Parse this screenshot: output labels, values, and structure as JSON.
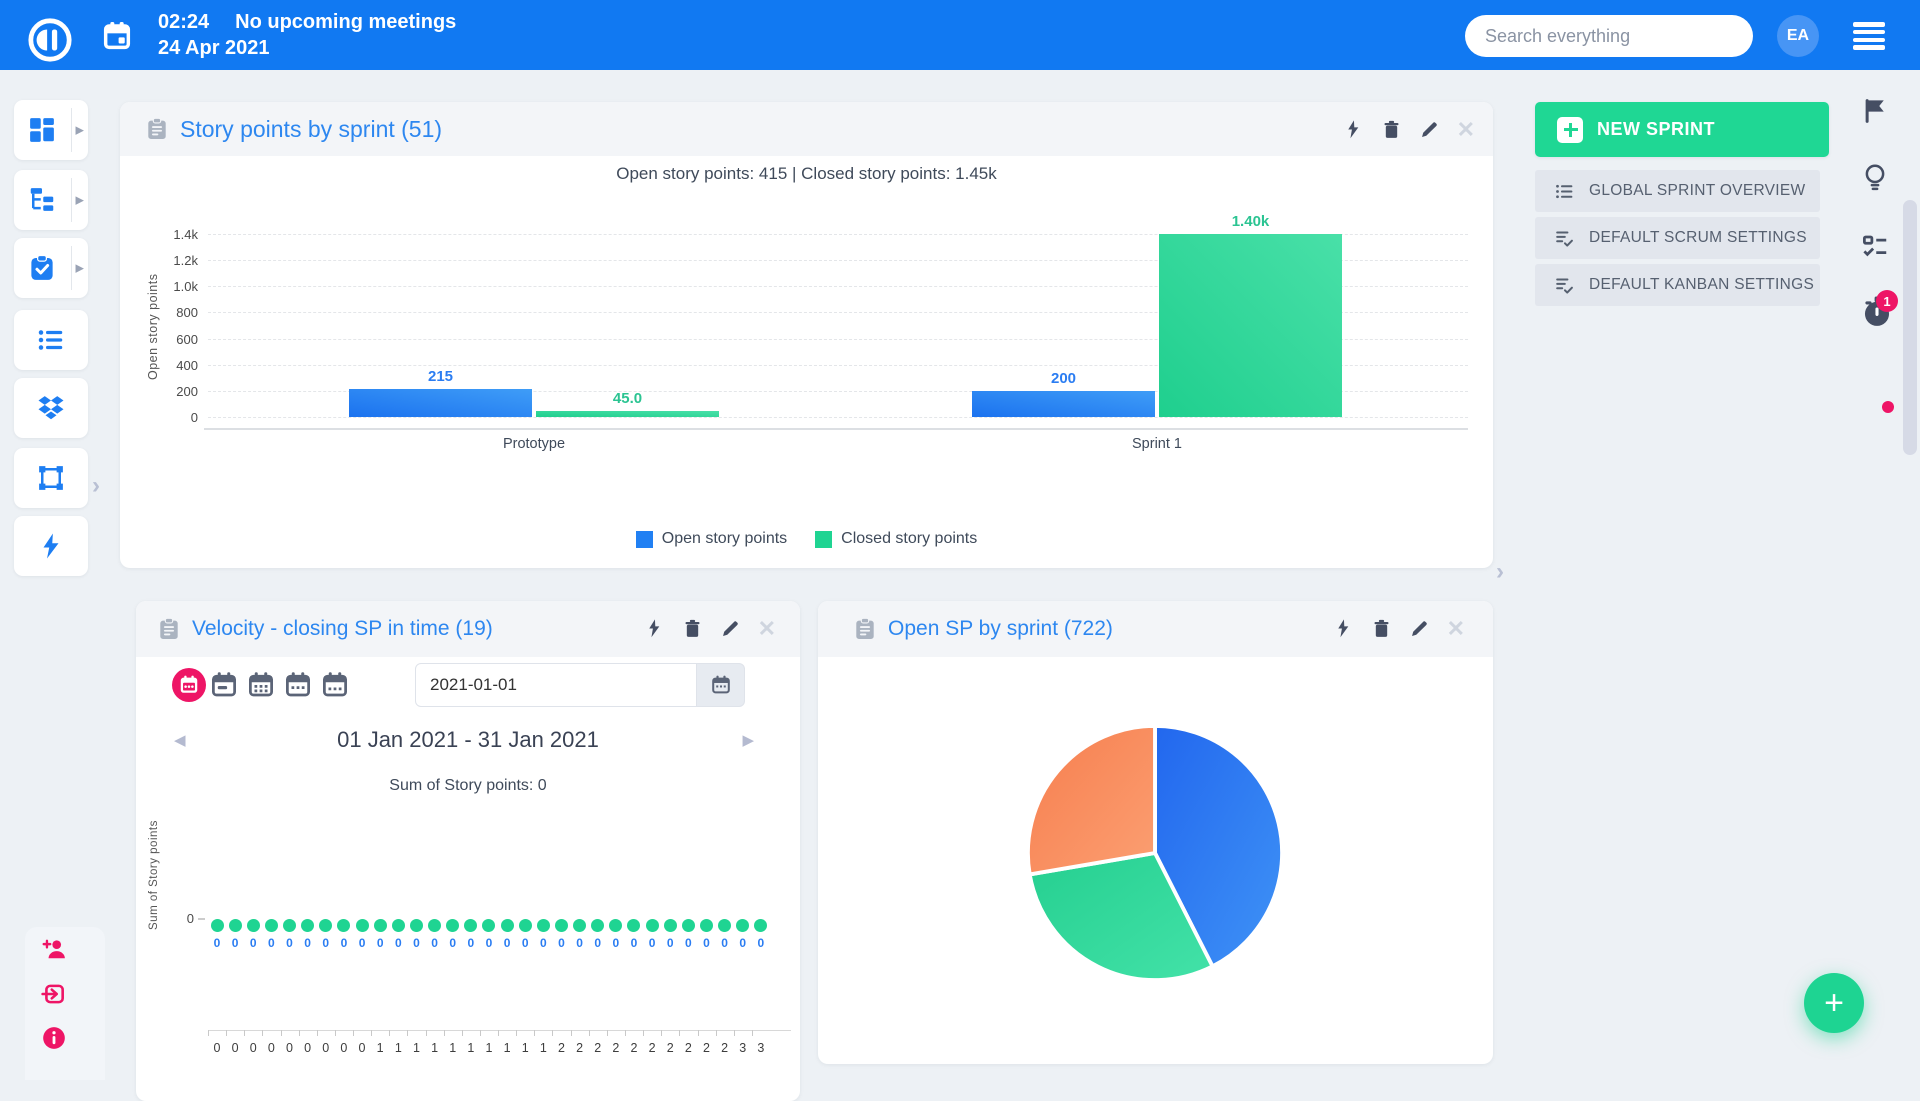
{
  "topbar": {
    "time": "02:24",
    "meetings_label": "No upcoming meetings",
    "date": "24 Apr 2021",
    "search_placeholder": "Search everything",
    "avatar_initials": "EA"
  },
  "widgets": {
    "story_points": {
      "title": "Story points by sprint (51)",
      "subtitle": "Open story points: 415 | Closed story points: 1.45k"
    },
    "velocity": {
      "title": "Velocity - closing SP in time (19)",
      "date_value": "2021-01-01",
      "date_range": "01 Jan 2021 - 31 Jan 2021",
      "sum_text": "Sum of Story points: 0"
    },
    "open_sp": {
      "title": "Open SP by sprint (722)"
    }
  },
  "right_panel": {
    "new_sprint_label": "NEW SPRINT",
    "buttons": [
      {
        "label": "GLOBAL SPRINT OVERVIEW"
      },
      {
        "label": "DEFAULT SCRUM SETTINGS"
      },
      {
        "label": "DEFAULT KANBAN SETTINGS"
      }
    ]
  },
  "right_rail": {
    "timer_badge": "1"
  },
  "fab": {
    "label": "+"
  },
  "colors": {
    "topbar_blue": "#1179f2",
    "accent_blue": "#2d87f0",
    "green": "#1fd492",
    "pink": "#ee1566",
    "orange": "#f9915f",
    "slate_icon": "#454e63",
    "gray_button_bg": "#e2e6ed",
    "page_bg": "#edf1f5"
  },
  "chart_data": [
    {
      "type": "bar",
      "title": "Story points by sprint (51)",
      "subtitle": "Open story points: 415 | Closed story points: 1.45k",
      "categories": [
        "Prototype",
        "Sprint 1"
      ],
      "series": [
        {
          "name": "Open story points",
          "color": "#2180f3",
          "label_color": "#2b7df2",
          "values": [
            215,
            200
          ],
          "labels": [
            "215",
            "200"
          ]
        },
        {
          "name": "Closed story points",
          "color": "#1fd492",
          "label_color": "#2bc492",
          "values": [
            45,
            1400
          ],
          "labels": [
            "45.0",
            "1.40k"
          ]
        }
      ],
      "xlabel": "",
      "ylabel": "Open story points",
      "yticks": [
        "1.4k",
        "1.2k",
        "1.0k",
        "800",
        "600",
        "400",
        "200",
        "0"
      ],
      "ylim": [
        0,
        1500
      ],
      "grid": "dashed",
      "legend_position": "bottom"
    },
    {
      "type": "scatter",
      "title": "Velocity - closing SP in time (19)",
      "ylabel": "Sum of Story points",
      "yticks": [
        "0"
      ],
      "x_labels": [
        "0",
        "0",
        "0",
        "0",
        "0",
        "0",
        "0",
        "0",
        "0",
        "1",
        "1",
        "1",
        "1",
        "1",
        "1",
        "1",
        "1",
        "1",
        "1",
        "2",
        "2",
        "2",
        "2",
        "2",
        "2",
        "2",
        "2",
        "2",
        "2",
        "3",
        "3"
      ],
      "values": [
        0,
        0,
        0,
        0,
        0,
        0,
        0,
        0,
        0,
        0,
        0,
        0,
        0,
        0,
        0,
        0,
        0,
        0,
        0,
        0,
        0,
        0,
        0,
        0,
        0,
        0,
        0,
        0,
        0,
        0,
        0
      ],
      "point_color": "#1fd492",
      "value_label_color": "#2b7df2"
    },
    {
      "type": "pie",
      "title": "Open SP by sprint (722)",
      "total": 722,
      "slices": [
        {
          "value": 307,
          "color": "#2e7ff2"
        },
        {
          "value": 215,
          "color": "#2bd596"
        },
        {
          "value": 200,
          "color": "#f9915f"
        }
      ],
      "legend_position": "none"
    }
  ]
}
